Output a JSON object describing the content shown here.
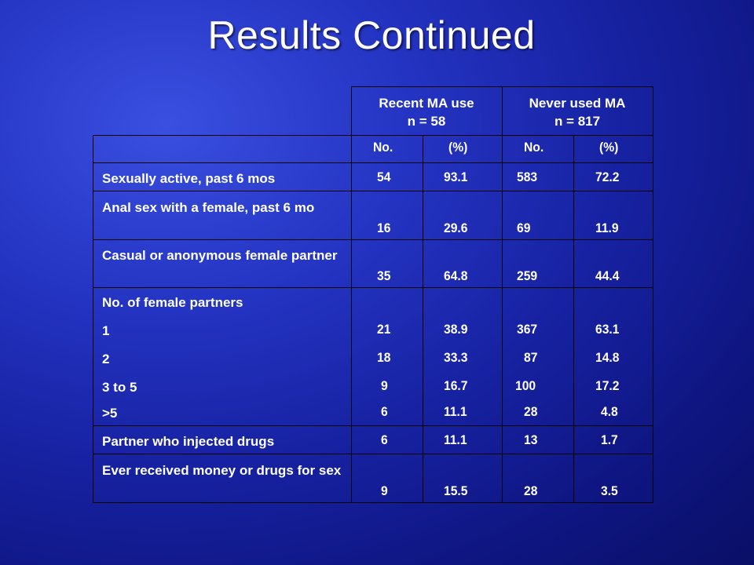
{
  "slide": {
    "title": "Results Continued"
  },
  "table": {
    "groups": [
      {
        "line1": "Recent MA use",
        "line2": "n = 58"
      },
      {
        "line1": "Never used MA",
        "line2": "n = 817"
      }
    ],
    "subheaders": [
      "No.",
      "(%)",
      "No.",
      "(%)"
    ],
    "rows": [
      {
        "label": "Sexually active, past 6 mos",
        "values": [
          "54",
          "93.1",
          "583",
          "72.2"
        ]
      },
      {
        "label": "Anal sex with a female, past 6 mo",
        "values": [
          "16",
          "29.6",
          "69",
          "11.9"
        ]
      },
      {
        "label": "Casual or anonymous female partner",
        "values": [
          "35",
          "64.8",
          "259",
          "44.4"
        ]
      },
      {
        "label": "No. of female partners",
        "values": [
          "",
          "",
          "",
          ""
        ]
      },
      {
        "label": "1",
        "values": [
          "21",
          "38.9",
          "367",
          "63.1"
        ]
      },
      {
        "label": "2",
        "values": [
          "18",
          "33.3",
          "87",
          "14.8"
        ]
      },
      {
        "label": "3 to 5",
        "values": [
          "9",
          "16.7",
          "100",
          "17.2"
        ]
      },
      {
        "label": ">5",
        "values": [
          "6",
          "11.1",
          "28",
          "4.8"
        ]
      },
      {
        "label": "Partner who injected drugs",
        "values": [
          "6",
          "11.1",
          "13",
          "1.7"
        ]
      },
      {
        "label": "Ever received money or drugs for sex",
        "values": [
          "9",
          "15.5",
          "28",
          "3.5"
        ]
      }
    ]
  }
}
